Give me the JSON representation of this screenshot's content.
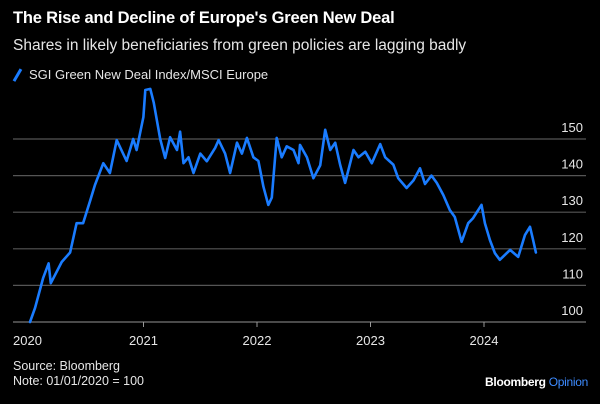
{
  "header": {
    "title": "The Rise and Decline of Europe's Green New Deal",
    "subtitle": "Shares in likely beneficiaries from green policies are lagging badly"
  },
  "footer": {
    "source": "Source: Bloomberg",
    "note": "Note: 01/01/2020 = 100",
    "brand": "Bloomberg",
    "brand_suffix": "Opinion"
  },
  "colors": {
    "series": "#1a7cff",
    "grid": "#555555",
    "background": "#000000",
    "brand_suffix": "#3d8bff"
  },
  "chart_data": {
    "type": "line",
    "title": "The Rise and Decline of Europe's Green New Deal",
    "subtitle": "Shares in likely beneficiaries from green policies are lagging badly",
    "xlabel": "",
    "ylabel": "",
    "x_ticks": [
      "2020",
      "2021",
      "2022",
      "2023",
      "2024"
    ],
    "y_ticks": [
      "100",
      "110",
      "120",
      "130",
      "140",
      "150"
    ],
    "ylim": [
      97,
      166
    ],
    "y_axis_side": "right",
    "grid": true,
    "legend_position": "top-left",
    "series": [
      {
        "name": "SGI Green New Deal Index/MSCI Europe",
        "color": "#1a7cff",
        "x": [
          "2020-01-01",
          "2020-01-17",
          "2020-02-12",
          "2020-03-01",
          "2020-03-08",
          "2020-04-12",
          "2020-05-09",
          "2020-05-30",
          "2020-06-20",
          "2020-07-12",
          "2020-07-28",
          "2020-08-24",
          "2020-09-14",
          "2020-10-06",
          "2020-11-07",
          "2020-11-28",
          "2020-12-09",
          "2020-12-31",
          "2021-01-06",
          "2021-01-22",
          "2021-02-02",
          "2021-02-23",
          "2021-03-11",
          "2021-03-27",
          "2021-04-18",
          "2021-04-28",
          "2021-05-09",
          "2021-05-25",
          "2021-06-10",
          "2021-07-02",
          "2021-07-23",
          "2021-08-19",
          "2021-08-30",
          "2021-09-20",
          "2021-10-06",
          "2021-10-28",
          "2021-11-13",
          "2021-11-29",
          "2021-12-20",
          "2022-01-05",
          "2022-01-21",
          "2022-02-06",
          "2022-02-17",
          "2022-03-05",
          "2022-03-21",
          "2022-04-06",
          "2022-04-28",
          "2022-05-14",
          "2022-05-19",
          "2022-06-10",
          "2022-07-01",
          "2022-07-23",
          "2022-08-08",
          "2022-08-24",
          "2022-09-09",
          "2022-09-25",
          "2022-10-11",
          "2022-11-07",
          "2022-11-23",
          "2022-12-15",
          "2023-01-05",
          "2023-02-01",
          "2023-02-17",
          "2023-03-15",
          "2023-03-31",
          "2023-04-27",
          "2023-05-19",
          "2023-06-09",
          "2023-06-25",
          "2023-07-16",
          "2023-08-02",
          "2023-08-23",
          "2023-09-13",
          "2023-09-29",
          "2023-10-21",
          "2023-11-11",
          "2023-11-27",
          "2023-12-24",
          "2024-01-04",
          "2024-01-20",
          "2024-02-05",
          "2024-02-21",
          "2024-03-25",
          "2024-04-20",
          "2024-05-12",
          "2024-05-28",
          "2024-06-07",
          "2024-06-16"
        ],
        "values": [
          100,
          103.8,
          112,
          116,
          110.6,
          116.4,
          119,
          127,
          127,
          133,
          137.4,
          143.4,
          140.7,
          149.7,
          144,
          150,
          147,
          156,
          163.4,
          163.7,
          160,
          150,
          144.8,
          150.5,
          147,
          152,
          143.4,
          145,
          140.7,
          146,
          143.9,
          147.6,
          149.7,
          146,
          140.7,
          149,
          146,
          150.3,
          145,
          144,
          137,
          132,
          134,
          150.3,
          145,
          148,
          147,
          143.4,
          148.4,
          145,
          139.3,
          142.8,
          152.5,
          147,
          149,
          143,
          138,
          147,
          145,
          146.5,
          143.4,
          148.6,
          145,
          143,
          139.3,
          136.6,
          138.7,
          142,
          137.7,
          140,
          138,
          134.7,
          130.6,
          128.7,
          121.9,
          127,
          128.4,
          132,
          127,
          122.4,
          118.8,
          117,
          119.7,
          117.8,
          123.8,
          126,
          122.4,
          119
        ]
      }
    ]
  }
}
